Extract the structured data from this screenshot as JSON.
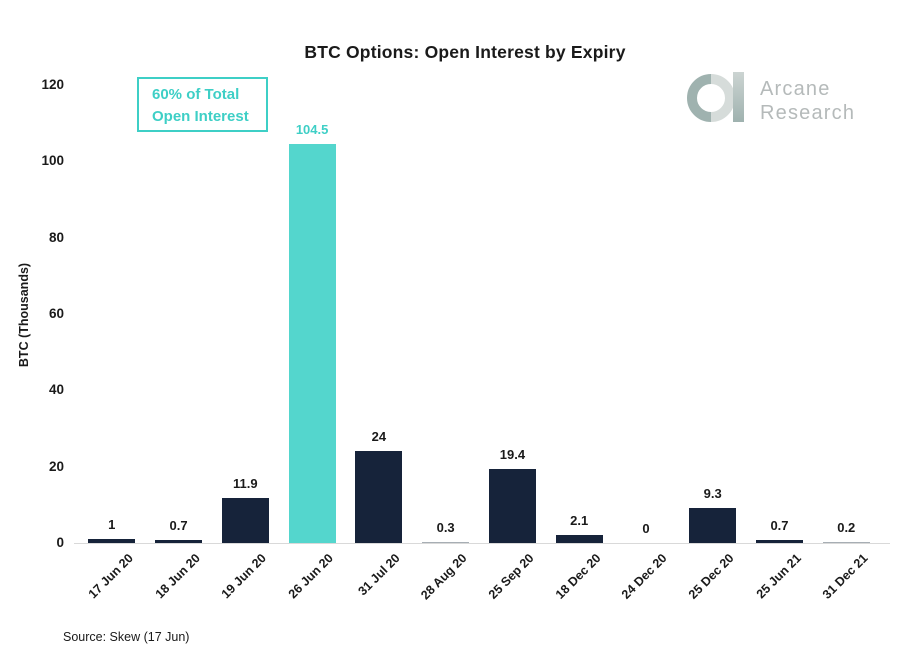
{
  "title": "BTC Options: Open Interest by Expiry",
  "logo": {
    "line1": "Arcane",
    "line2": "Research",
    "ring_left_color": "#9fb2af",
    "ring_right_color": "#d6dcda",
    "stem_top_color": "#ccd4d2",
    "stem_bottom_color": "#9fb2af",
    "text_color": "#b5baba"
  },
  "annotation": {
    "line1": "60% of Total",
    "line2": "Open Interest",
    "color": "#3ecfc6"
  },
  "source": "Source: Skew (17 Jun)",
  "chart_data": {
    "type": "bar",
    "title": "BTC Options: Open Interest by Expiry",
    "categories": [
      "17 Jun 20",
      "18 Jun 20",
      "19 Jun 20",
      "26 Jun 20",
      "31 Jul 20",
      "28 Aug 20",
      "25 Sep 20",
      "18 Dec 20",
      "24 Dec 20",
      "25 Dec 20",
      "25 Jun 21",
      "31 Dec 21"
    ],
    "values": [
      1,
      0.7,
      11.9,
      104.5,
      24,
      0.3,
      19.4,
      2.1,
      0,
      9.3,
      0.7,
      0.2
    ],
    "data_labels": [
      "1",
      "0.7",
      "11.9",
      "104.5",
      "24",
      "0.3",
      "19.4",
      "2.1",
      "0",
      "9.3",
      "0.7",
      "0.2"
    ],
    "xlabel": "",
    "ylabel": "BTC  (Thousands)",
    "ylim": [
      0,
      120
    ],
    "yticks": [
      0,
      20,
      40,
      60,
      80,
      100,
      120
    ],
    "grid": false,
    "legend": false,
    "bar_color": "#16233a",
    "highlight_index": 3,
    "highlight_color": "#54d6cd",
    "highlight_label_color": "#3ecfc6",
    "label_color": "#1a1a1a",
    "tiny_bar_color": "#a7aeb4",
    "tiny_bar_indices": [
      5,
      11
    ]
  }
}
